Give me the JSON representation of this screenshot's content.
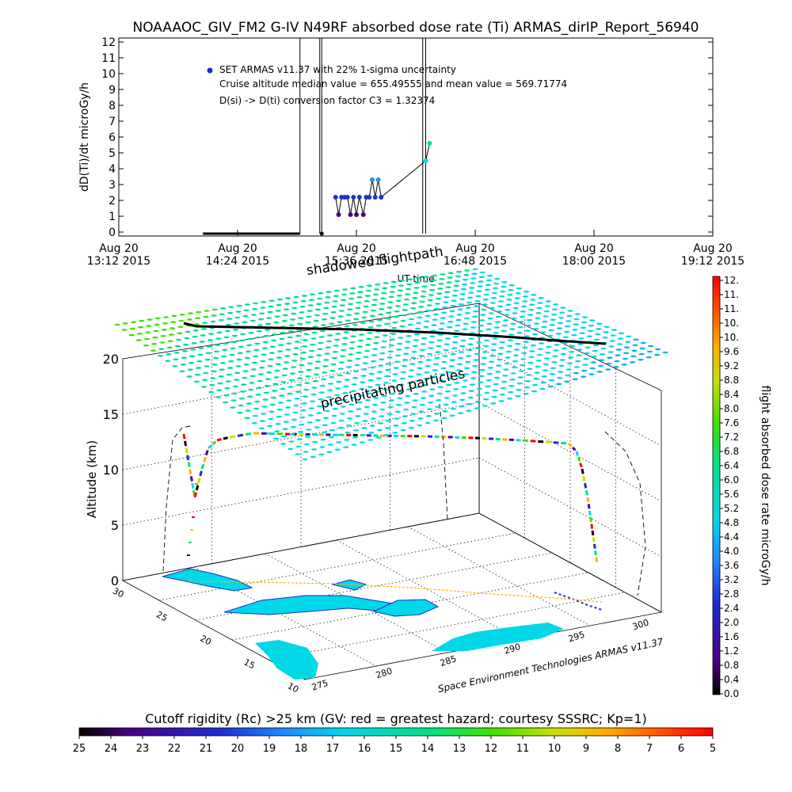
{
  "chart_data": [
    {
      "type": "line",
      "title": "NOAAAOC_GIV_FM2 G-IV   N49RF  absorbed dose rate (Ti) ARMAS_dirIP_Report_56940",
      "ylabel": "dD(Ti)/dt microGy/h",
      "xlabel": "UT time",
      "ylim": [
        0,
        12
      ],
      "yticks": [
        "0",
        "1",
        "2",
        "3",
        "4",
        "5",
        "6",
        "7",
        "8",
        "9",
        "10",
        "11",
        "12"
      ],
      "xticks": [
        {
          "line1": "Aug 20",
          "line2": "13:12 2015"
        },
        {
          "line1": "Aug 20",
          "line2": "14:24 2015"
        },
        {
          "line1": "Aug 20",
          "line2": "15:36 2015"
        },
        {
          "line1": "Aug 20",
          "line2": "16:48 2015"
        },
        {
          "line1": "Aug 20",
          "line2": "18:00 2015"
        },
        {
          "line1": "Aug 20",
          "line2": "19:12 2015"
        }
      ],
      "xlim_hours": [
        13.2,
        19.2
      ],
      "annotations": [
        "SET ARMAS v11.37 with 22% 1-sigma uncertainty",
        "Cruise altitude median value = 655.49555 and mean value = 569.71774",
        "D(si) -> D(ti) conversion factor C3 = 1.32374"
      ],
      "baseline_segment": {
        "from_h": 14.05,
        "to_h": 15.03,
        "value": -0.1
      },
      "spikes_h": [
        15.03,
        15.23,
        15.25,
        16.27,
        16.3
      ],
      "points": [
        {
          "x": 15.39,
          "y": 2.2
        },
        {
          "x": 15.42,
          "y": 1.1
        },
        {
          "x": 15.45,
          "y": 2.2
        },
        {
          "x": 15.48,
          "y": 2.2
        },
        {
          "x": 15.51,
          "y": 2.2
        },
        {
          "x": 15.54,
          "y": 1.1
        },
        {
          "x": 15.57,
          "y": 2.2
        },
        {
          "x": 15.6,
          "y": 1.1
        },
        {
          "x": 15.63,
          "y": 2.2
        },
        {
          "x": 15.67,
          "y": 1.1
        },
        {
          "x": 15.7,
          "y": 2.2
        },
        {
          "x": 15.73,
          "y": 2.2
        },
        {
          "x": 15.76,
          "y": 3.3
        },
        {
          "x": 15.79,
          "y": 2.2
        },
        {
          "x": 15.82,
          "y": 3.3
        },
        {
          "x": 15.85,
          "y": 2.2
        },
        {
          "x": 16.3,
          "y": 4.5
        },
        {
          "x": 16.34,
          "y": 5.6
        }
      ]
    },
    {
      "type": "scatter",
      "title": "shadowed flightpath",
      "subtitle": "precipitating particles",
      "ylabel": "Altitude (km)",
      "zticks": [
        "0",
        "5",
        "10",
        "15",
        "20"
      ],
      "lat_ticks": [
        "30",
        "25",
        "20",
        "15",
        "10"
      ],
      "lon_ticks": [
        "275",
        "280",
        "285",
        "290",
        "295",
        "300"
      ],
      "credit": "Space Environment Technologies ARMAS v11.37",
      "right_colorbar": {
        "label": "flight absorbed dose rate microGy/h",
        "ticks": [
          "12.",
          "11.",
          "11.",
          "10.",
          "10.",
          "9.6",
          "9.2",
          "8.8",
          "8.4",
          "8.0",
          "7.6",
          "7.2",
          "6.8",
          "6.4",
          "6.0",
          "5.6",
          "5.2",
          "4.8",
          "4.4",
          "4.0",
          "3.6",
          "3.2",
          "2.8",
          "2.4",
          "2.0",
          "1.6",
          "1.2",
          "0.8",
          "0.4",
          "0.0"
        ]
      },
      "bottom_colorbar": {
        "label": "Cutoff rigidity (Rc) >25 km (GV: red = greatest hazard; courtesy SSSRC; Kp=1)",
        "ticks": [
          "25",
          "24",
          "23",
          "22",
          "21",
          "20",
          "19",
          "18",
          "17",
          "16",
          "15",
          "14",
          "13",
          "12",
          "11",
          "10",
          "9",
          "8",
          "7",
          "6",
          "5"
        ]
      }
    }
  ]
}
